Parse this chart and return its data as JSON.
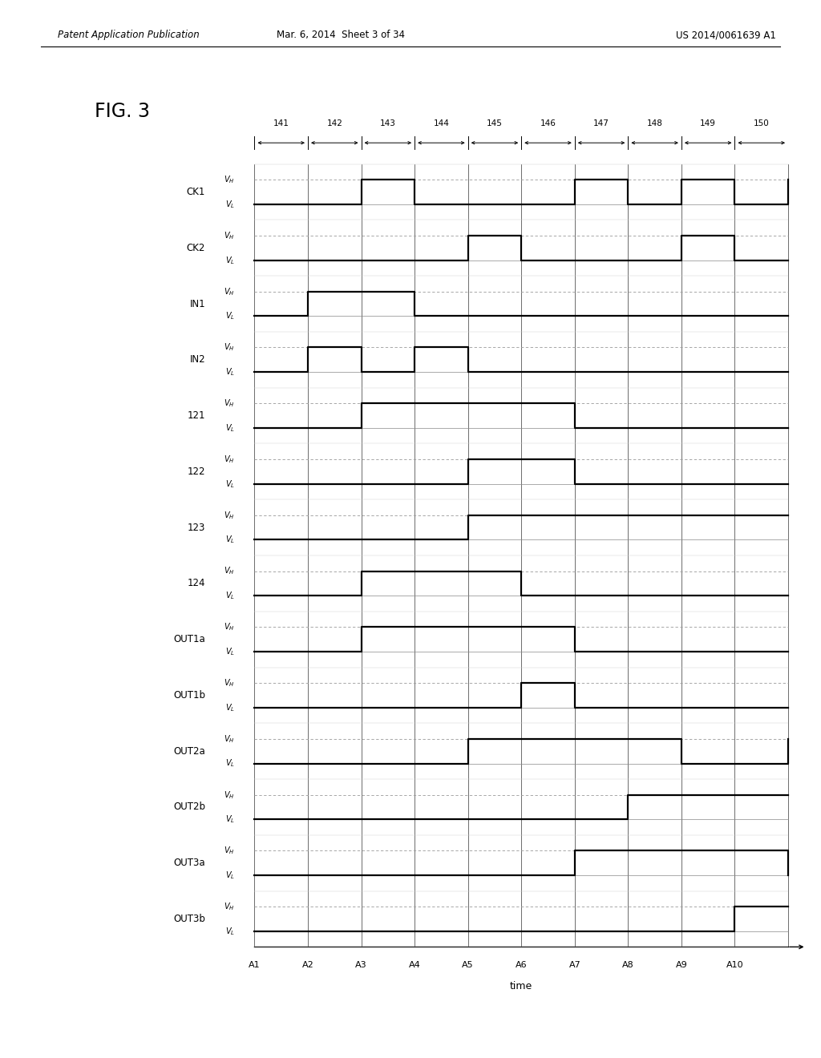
{
  "fig_label": "FIG. 3",
  "header_left": "Patent Application Publication",
  "header_center": "Mar. 6, 2014  Sheet 3 of 34",
  "header_right": "US 2014/0061639 A1",
  "period_labels": [
    "141",
    "142",
    "143",
    "144",
    "145",
    "146",
    "147",
    "148",
    "149",
    "150"
  ],
  "time_labels": [
    "A1",
    "A2",
    "A3",
    "A4",
    "A5",
    "A6",
    "A7",
    "A8",
    "A9",
    "A10"
  ],
  "signal_names": [
    "CK1",
    "CK2",
    "IN1",
    "IN2",
    "121",
    "122",
    "123",
    "124",
    "OUT1a",
    "OUT1b",
    "OUT2a",
    "OUT2b",
    "OUT3a",
    "OUT3b"
  ],
  "signals": {
    "CK1": [
      0,
      0,
      1,
      0,
      0,
      0,
      1,
      0,
      1,
      0,
      1
    ],
    "CK2": [
      0,
      0,
      0,
      0,
      1,
      0,
      0,
      0,
      1,
      0,
      0
    ],
    "IN1": [
      0,
      1,
      1,
      0,
      0,
      0,
      0,
      0,
      0,
      0,
      0
    ],
    "IN2": [
      0,
      1,
      0,
      1,
      0,
      0,
      0,
      0,
      0,
      0,
      0
    ],
    "121": [
      0,
      0,
      1,
      1,
      1,
      1,
      0,
      0,
      0,
      0,
      0
    ],
    "122": [
      0,
      0,
      0,
      0,
      1,
      1,
      0,
      0,
      0,
      0,
      0
    ],
    "123": [
      0,
      0,
      0,
      0,
      1,
      1,
      1,
      1,
      1,
      1,
      1
    ],
    "124": [
      0,
      0,
      1,
      1,
      1,
      0,
      0,
      0,
      0,
      0,
      0
    ],
    "OUT1a": [
      0,
      0,
      1,
      1,
      1,
      1,
      0,
      0,
      0,
      0,
      0
    ],
    "OUT1b": [
      0,
      0,
      0,
      0,
      0,
      1,
      0,
      0,
      0,
      0,
      0
    ],
    "OUT2a": [
      0,
      0,
      0,
      0,
      1,
      1,
      1,
      1,
      0,
      0,
      1
    ],
    "OUT2b": [
      0,
      0,
      0,
      0,
      0,
      0,
      0,
      1,
      1,
      1,
      1
    ],
    "OUT3a": [
      0,
      0,
      0,
      0,
      0,
      0,
      1,
      1,
      1,
      1,
      0
    ],
    "OUT3b": [
      0,
      0,
      0,
      0,
      0,
      0,
      0,
      0,
      0,
      1,
      1
    ]
  },
  "background_color": "#ffffff",
  "signal_color": "#000000",
  "grid_solid_color": "#555555",
  "grid_dash_color": "#999999"
}
